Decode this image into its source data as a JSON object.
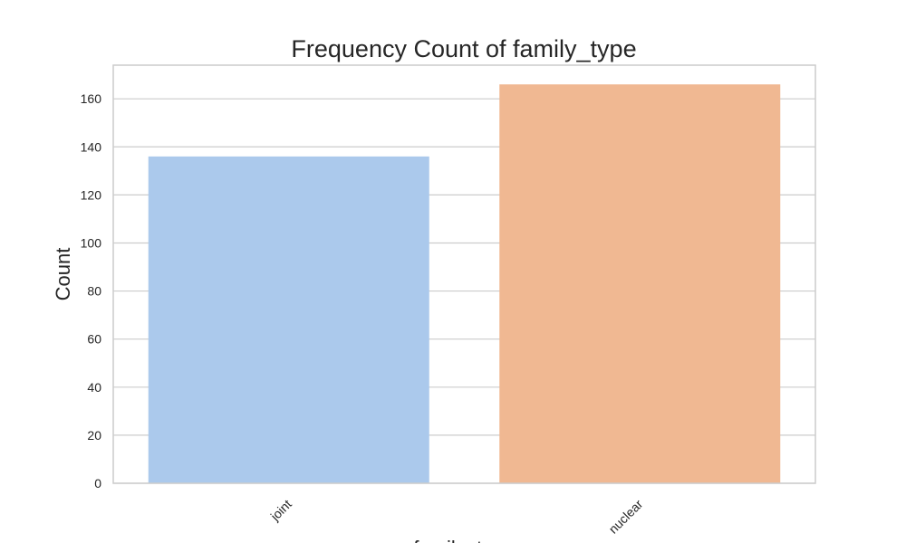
{
  "colors": {
    "background": "#ffffff",
    "grid": "#cccccc",
    "axes_border": "#cccccc",
    "text": "#262626",
    "bar_joint": "#abc9ec",
    "bar_nuclear": "#f0b892"
  },
  "chart_data": {
    "type": "bar",
    "title": "Frequency Count of family_type",
    "xlabel": "family_type",
    "ylabel": "Count",
    "categories": [
      "joint",
      "nuclear"
    ],
    "values": [
      136,
      166
    ],
    "bar_colors": [
      "#abc9ec",
      "#f0b892"
    ],
    "ylim": [
      0,
      174
    ],
    "yticks": [
      0,
      20,
      40,
      60,
      80,
      100,
      120,
      140,
      160
    ],
    "grid": true,
    "legend": "none",
    "xtick_rotation": "45 degrees"
  }
}
